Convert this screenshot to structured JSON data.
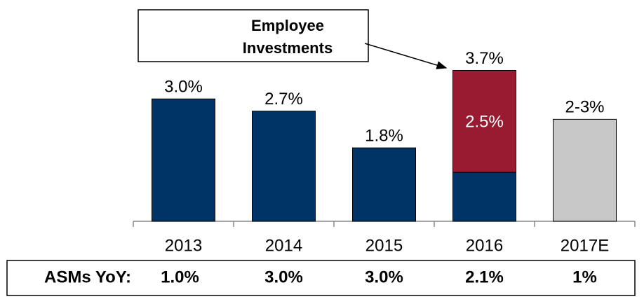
{
  "chart_data": {
    "type": "stacked_bar",
    "categories": [
      "2013",
      "2014",
      "2015",
      "2016",
      "2017E"
    ],
    "series": [
      {
        "color": "#003366",
        "values": [
          3.0,
          2.7,
          1.8,
          1.2,
          null
        ]
      },
      {
        "color": "#981b32",
        "values": [
          null,
          null,
          null,
          2.5,
          null
        ],
        "value_labels": [
          null,
          null,
          null,
          "2.5%",
          null
        ]
      },
      {
        "color": "#c8c8c8",
        "values": [
          null,
          null,
          null,
          null,
          2.5
        ]
      }
    ],
    "total_labels": [
      "3.0%",
      "2.7%",
      "1.8%",
      "3.7%",
      "2-3%"
    ],
    "ylim": [
      0,
      4
    ],
    "annotation": {
      "lines": [
        "Employee",
        "Investments"
      ]
    },
    "table": {
      "header": "ASMs YoY:",
      "values": [
        "1.0%",
        "3.0%",
        "3.0%",
        "2.1%",
        "1%"
      ]
    }
  }
}
